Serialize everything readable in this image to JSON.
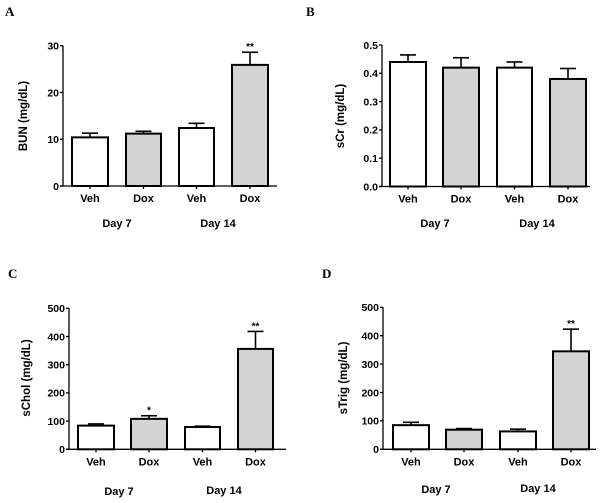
{
  "colors": {
    "veh_fill": "#ffffff",
    "dox_fill": "#d3d3d3",
    "stroke": "#000000"
  },
  "chart_data": [
    {
      "type": "bar",
      "panel": "A",
      "ylabel": "BUN (mg/dL)",
      "xlabel": "",
      "categories": [
        "Veh",
        "Dox",
        "Veh",
        "Dox"
      ],
      "groups": [
        "Day 7",
        "Day 14"
      ],
      "values": [
        10.4,
        11.2,
        12.4,
        25.9
      ],
      "error_upper": [
        11.3,
        11.7,
        13.4,
        28.6
      ],
      "significance": [
        "",
        "",
        "",
        "**"
      ],
      "ylim": [
        0,
        30
      ],
      "yticks": [
        0,
        10,
        20,
        30
      ],
      "ytick_labels": [
        "0",
        "10",
        "20",
        "30"
      ],
      "grid": false
    },
    {
      "type": "bar",
      "panel": "B",
      "ylabel": "sCr (mg/dL)",
      "xlabel": "",
      "categories": [
        "Veh",
        "Dox",
        "Veh",
        "Dox"
      ],
      "groups": [
        "Day 7",
        "Day 14"
      ],
      "values": [
        0.44,
        0.42,
        0.42,
        0.38
      ],
      "error_upper": [
        0.465,
        0.455,
        0.44,
        0.417
      ],
      "significance": [
        "",
        "",
        "",
        ""
      ],
      "ylim": [
        0,
        0.5
      ],
      "yticks": [
        0,
        0.1,
        0.2,
        0.3,
        0.4,
        0.5
      ],
      "ytick_labels": [
        "0.0",
        "0.1",
        "0.2",
        "0.3",
        "0.4",
        "0.5"
      ],
      "grid": false
    },
    {
      "type": "bar",
      "panel": "C",
      "ylabel": "sChol (mg/dL)",
      "xlabel": "",
      "categories": [
        "Veh",
        "Dox",
        "Veh",
        "Dox"
      ],
      "groups": [
        "Day 7",
        "Day 14"
      ],
      "values": [
        84,
        108,
        79,
        356
      ],
      "error_upper": [
        90,
        119,
        82,
        418
      ],
      "significance": [
        "",
        "*",
        "",
        "**"
      ],
      "ylim": [
        0,
        500
      ],
      "yticks": [
        0,
        100,
        200,
        300,
        400,
        500
      ],
      "ytick_labels": [
        "0",
        "100",
        "200",
        "300",
        "400",
        "500"
      ],
      "grid": false
    },
    {
      "type": "bar",
      "panel": "D",
      "ylabel": "sTrig (mg/dL)",
      "xlabel": "",
      "categories": [
        "Veh",
        "Dox",
        "Veh",
        "Dox"
      ],
      "groups": [
        "Day 7",
        "Day 14"
      ],
      "values": [
        85,
        69,
        63,
        345
      ],
      "error_upper": [
        95,
        73,
        71,
        423
      ],
      "significance": [
        "",
        "",
        "",
        "**"
      ],
      "ylim": [
        0,
        500
      ],
      "yticks": [
        0,
        100,
        200,
        300,
        400,
        500
      ],
      "ytick_labels": [
        "0",
        "100",
        "200",
        "300",
        "400",
        "500"
      ],
      "grid": false
    }
  ]
}
